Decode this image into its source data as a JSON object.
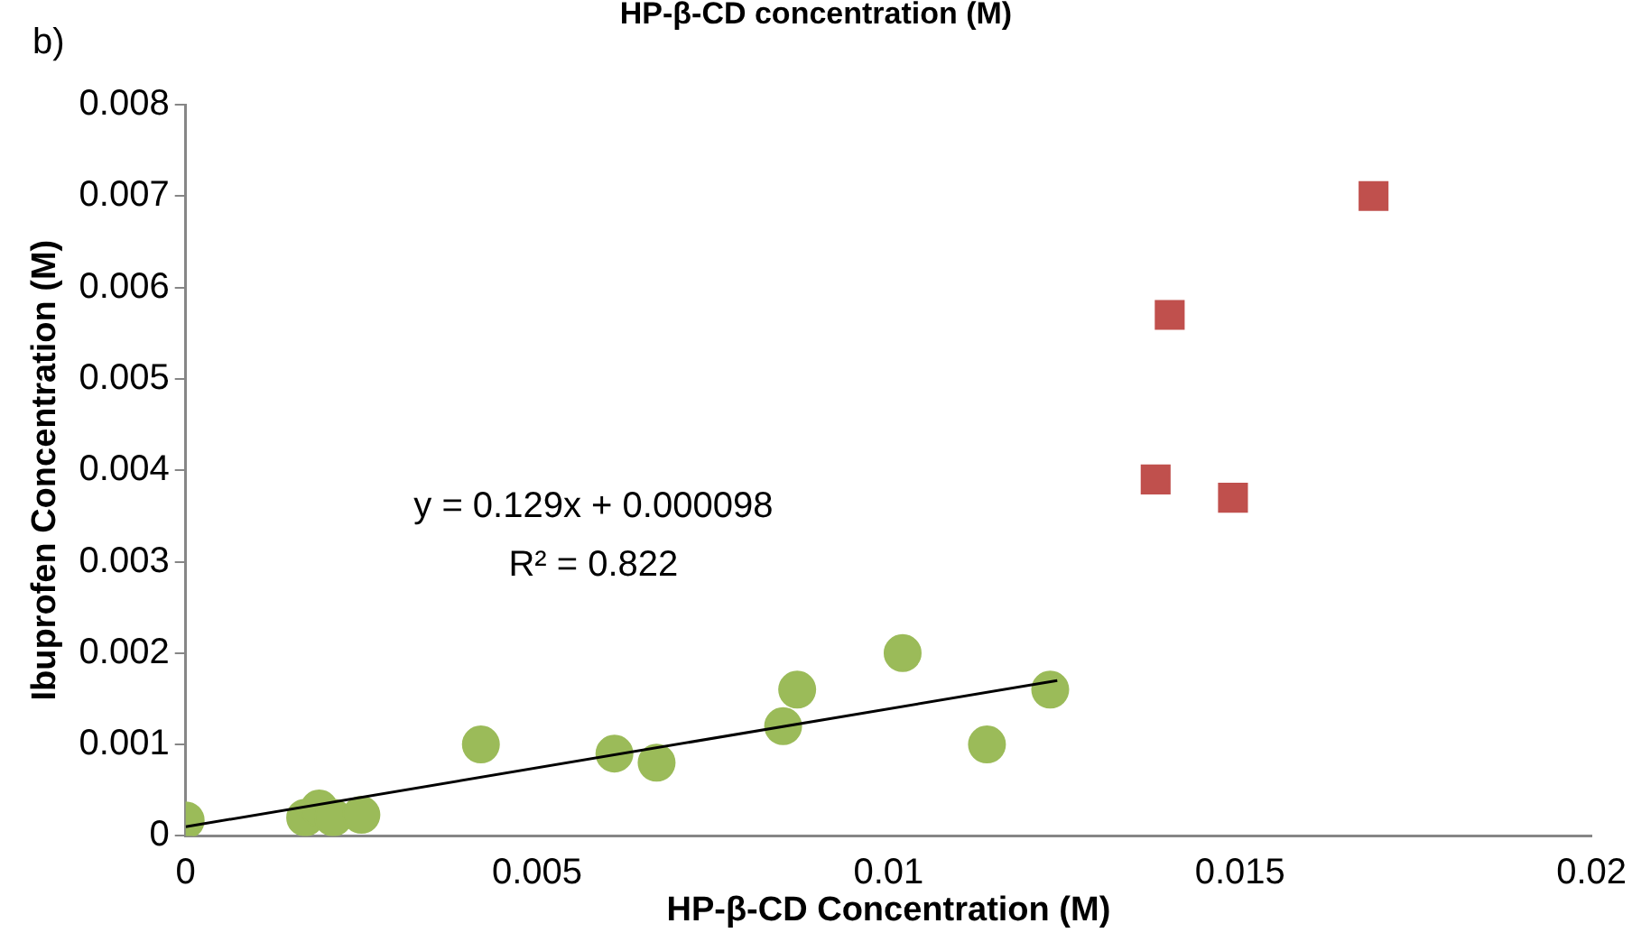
{
  "chart_data": {
    "type": "scatter",
    "title": "HP-β-CD concentration (M)",
    "xlabel": "HP-β-CD Concentration (M)",
    "ylabel": "Ibuprofen Concentration (M)",
    "xlim": [
      0,
      0.02
    ],
    "xticks": [
      0,
      0.005,
      0.01,
      0.015,
      0.02
    ],
    "ylim": [
      0,
      0.008
    ],
    "yticks": [
      0,
      0.001,
      0.002,
      0.003,
      0.004,
      0.005,
      0.006,
      0.007,
      0.008
    ],
    "grid": false,
    "legend": false,
    "annotations": [
      "b)",
      "y = 0.129x + 0.000098",
      "R² = 0.822"
    ],
    "series": [
      {
        "color": "#9bbb59",
        "marker": "circle",
        "x": [
          0,
          0.0017,
          0.0019,
          0.0021,
          0.0025,
          0.0042,
          0.0061,
          0.0067,
          0.0085,
          0.0087,
          0.0102,
          0.0114,
          0.0123
        ],
        "values": [
          0.00017,
          0.0002,
          0.0003,
          0.0002,
          0.00023,
          0.001,
          0.0009,
          0.0008,
          0.0012,
          0.0016,
          0.002,
          0.001,
          0.0016
        ]
      },
      {
        "color": "#c0504d",
        "marker": "square",
        "x": [
          0.0138,
          0.014,
          0.0149,
          0.0169
        ],
        "values": [
          0.0039,
          0.0057,
          0.0037,
          0.007
        ]
      },
      {
        "type": "line",
        "color": "#000000",
        "marker": "none",
        "x": [
          0,
          0.0124
        ],
        "values": [
          0.0001,
          0.0017
        ]
      }
    ]
  }
}
